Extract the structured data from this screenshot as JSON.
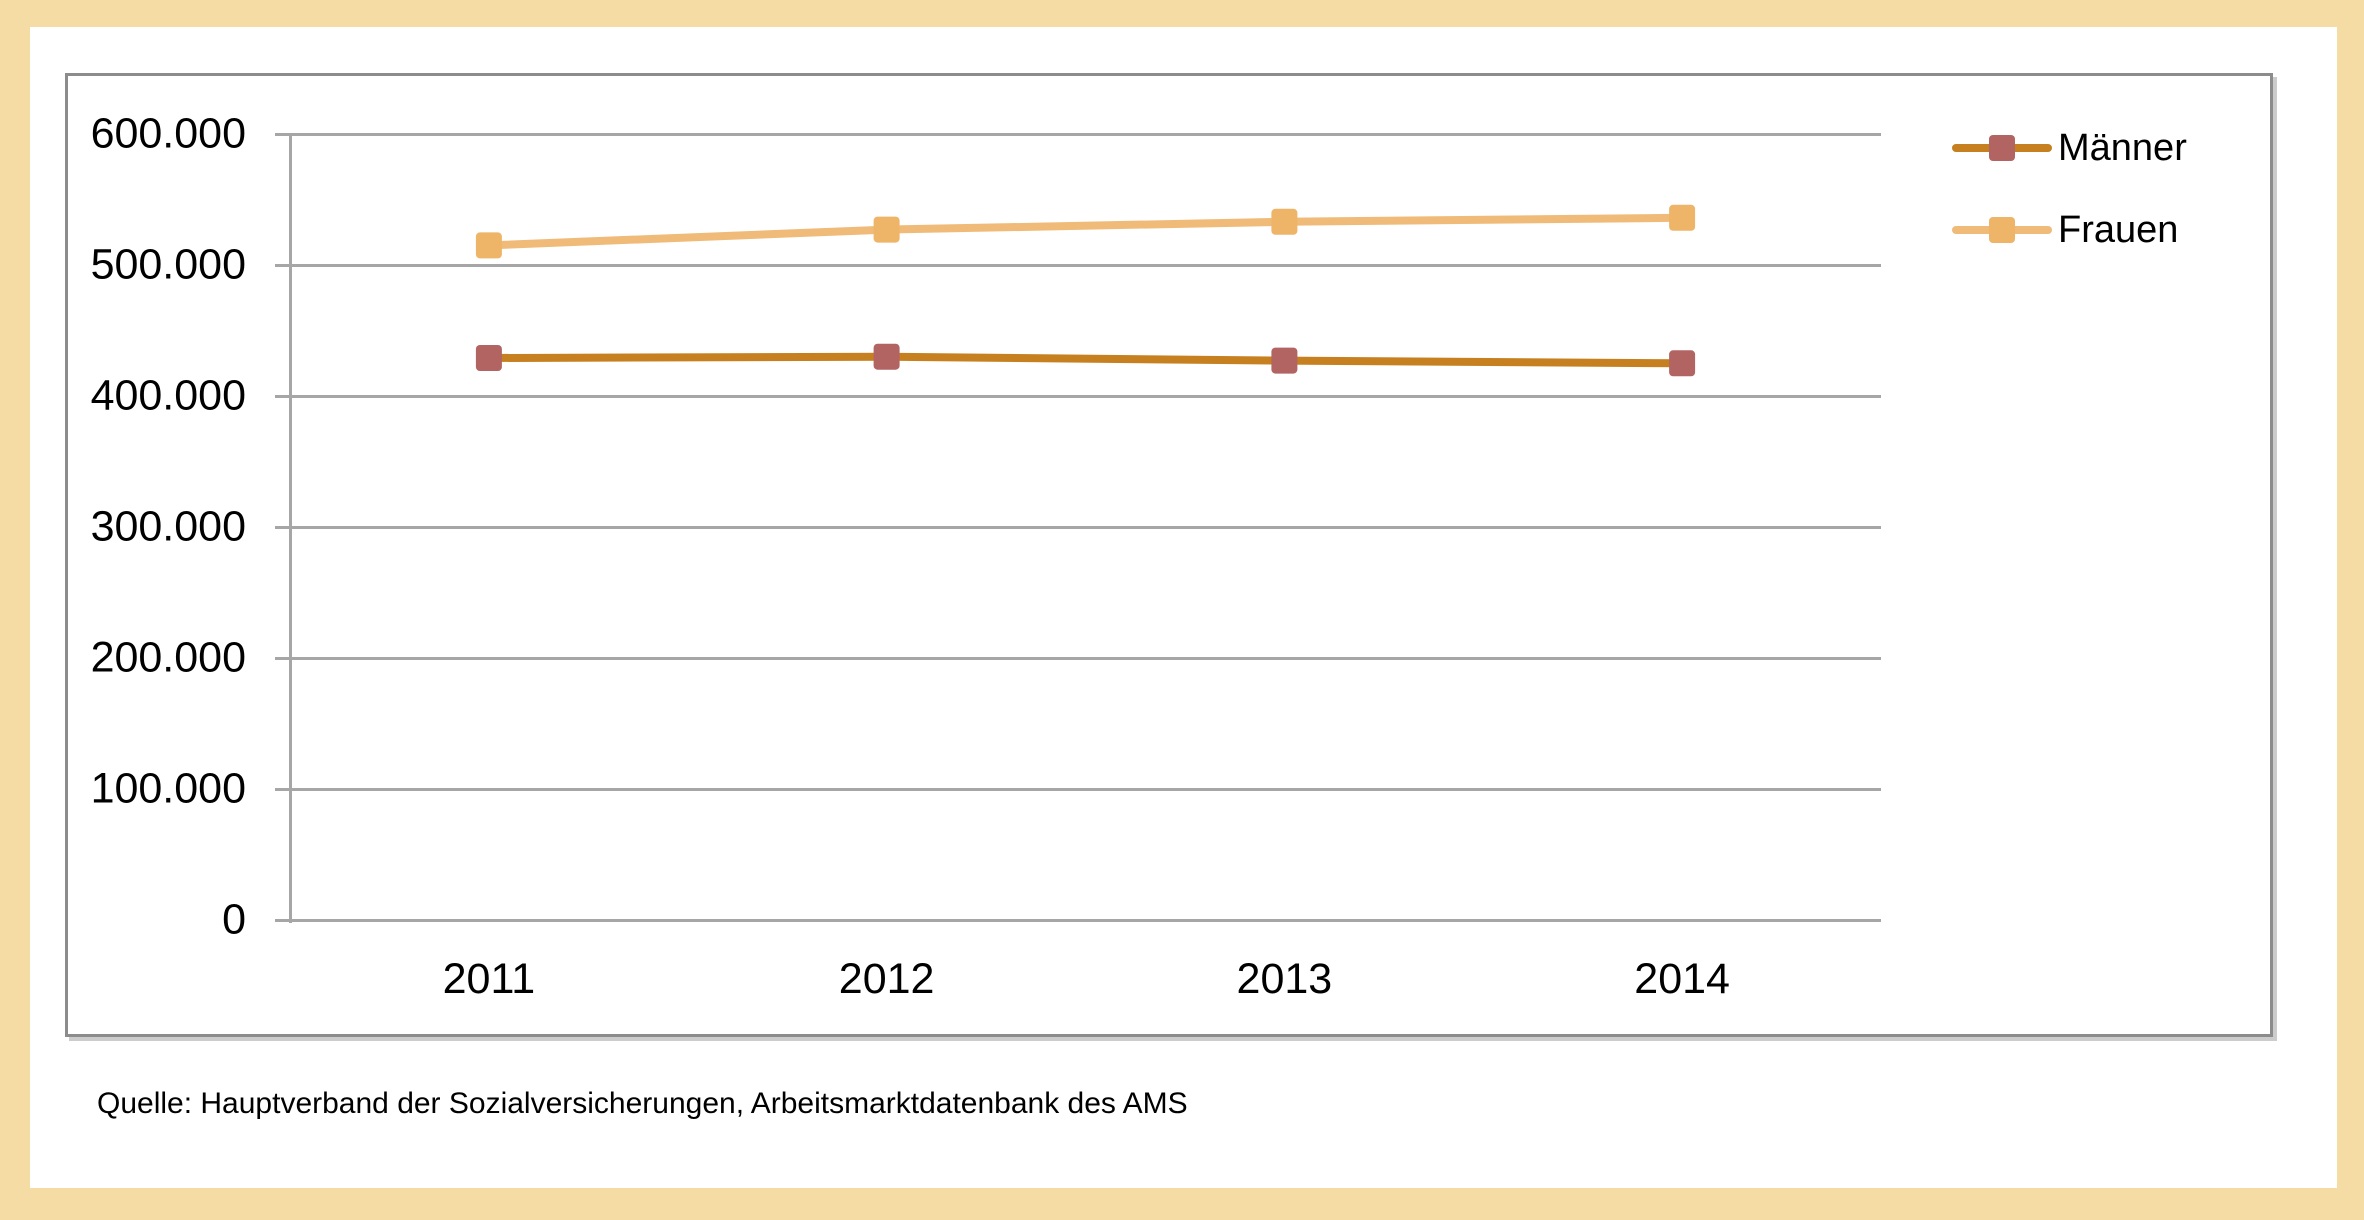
{
  "page": {
    "source_note": "Quelle: Hauptverband der Sozialversicherungen, Arbeitsmarktdatenbank des AMS"
  },
  "colors": {
    "background": "#F5DCA5",
    "page_bg": "#FFFFFF",
    "panel_border": "#8C8C8C",
    "grid": "#A6A6A6",
    "text": "#000000"
  },
  "chart_data": {
    "type": "line",
    "title": "",
    "xlabel": "",
    "ylabel": "",
    "categories": [
      "2011",
      "2012",
      "2013",
      "2014"
    ],
    "series": [
      {
        "name": "Männer",
        "values": [
          429000,
          430000,
          427000,
          425000
        ],
        "line_color": "#C6801F",
        "marker_color": "#B26462"
      },
      {
        "name": "Frauen",
        "values": [
          515000,
          527000,
          533000,
          536000
        ],
        "line_color": "#F0BB78",
        "marker_color": "#EEB569"
      }
    ],
    "ylim": [
      0,
      600000
    ],
    "y_tick_interval": 100000,
    "y_tick_labels": [
      "600.000",
      "500.000",
      "400.000",
      "300.000",
      "200.000",
      "100.000",
      "0"
    ],
    "grid": true,
    "legend_position": "top-right",
    "marker_shape": "square"
  }
}
